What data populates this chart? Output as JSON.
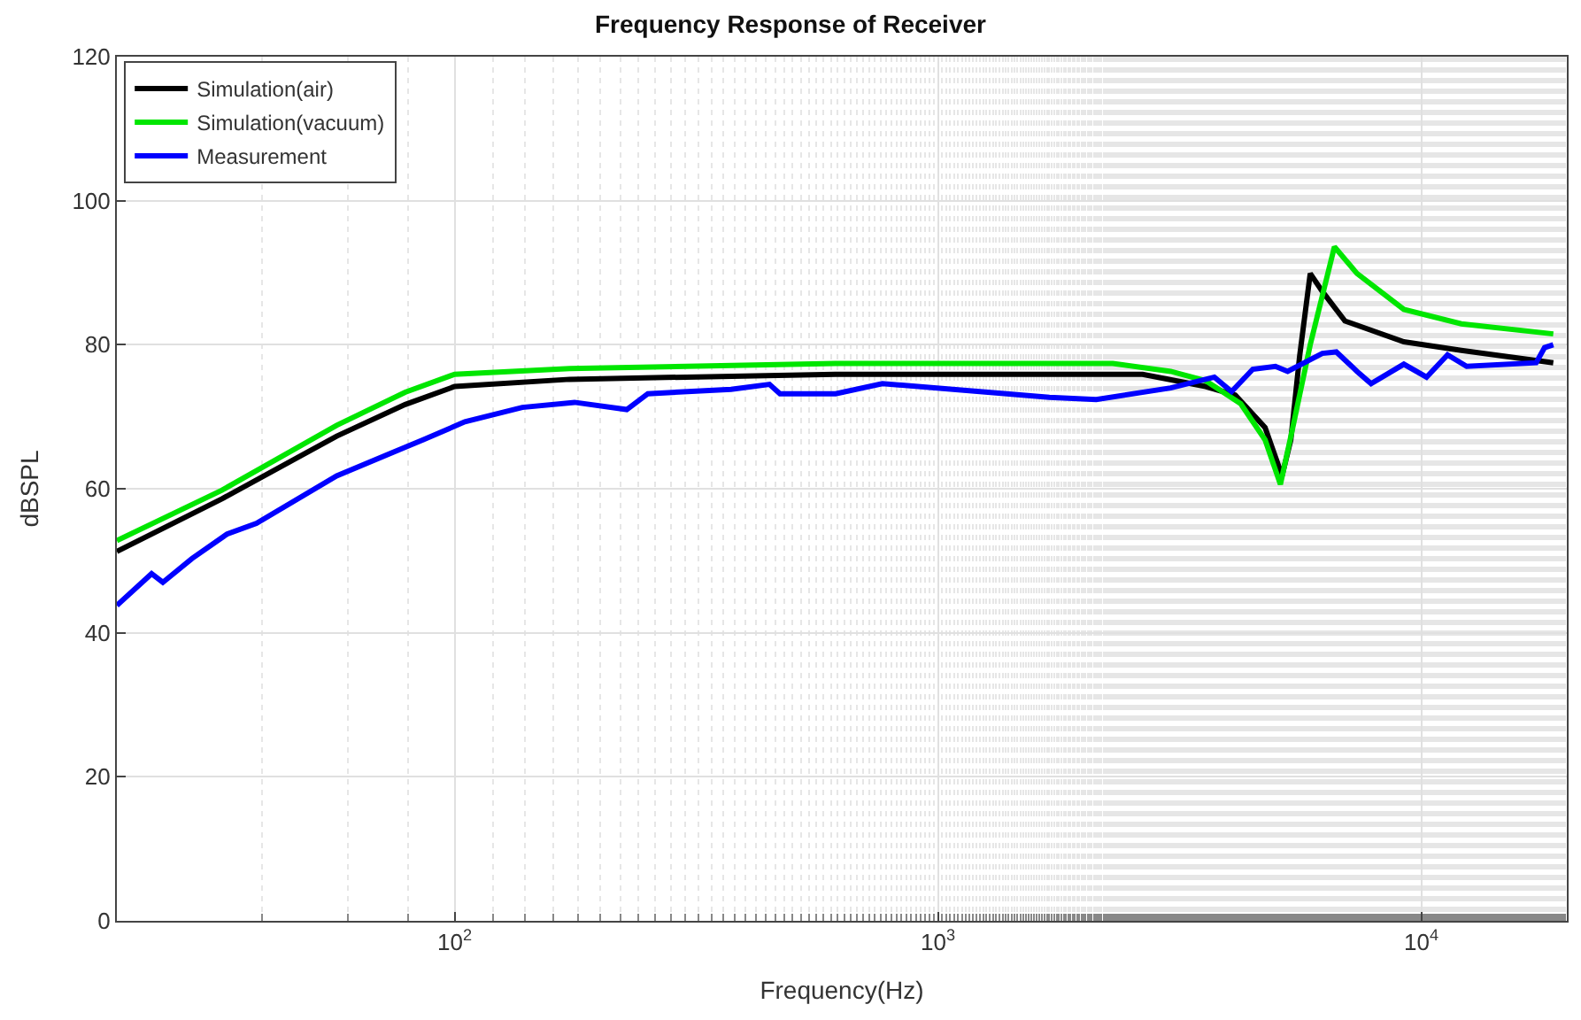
{
  "chart_data": {
    "type": "line",
    "title": "Frequency Response of Receiver",
    "xlabel": "Frequency(Hz)",
    "ylabel": "dBSPL",
    "log": "x",
    "xlim": [
      20,
      20000
    ],
    "xticks": [
      {
        "value": 100,
        "label": "10$^{2}$"
      },
      {
        "value": 1000,
        "label": "10$^{3}$"
      },
      {
        "value": 10000,
        "label": "10$^{4}$"
      }
    ],
    "ylim": [
      0,
      120
    ],
    "yticks": [
      0,
      20,
      40,
      60,
      80,
      100,
      120
    ],
    "grid": true,
    "legend": "top left",
    "marker": "none",
    "line_style": "solid",
    "series": [
      {
        "name": "Simulation(air)",
        "color": "#000000",
        "x": [
          20,
          33,
          57,
          79,
          100,
          173,
          614,
          2650,
          3580,
          4120,
          4750,
          5150,
          5370,
          5600,
          5890,
          6240,
          6950,
          9200,
          12100,
          18750
        ],
        "values": [
          51.3,
          58.6,
          67.3,
          71.7,
          74.2,
          75.2,
          75.9,
          75.9,
          74.2,
          73.0,
          68.5,
          61.8,
          66.8,
          78.4,
          89.9,
          87.4,
          83.3,
          80.4,
          79.2,
          77.5
        ]
      },
      {
        "name": "Simulation(vacuum)",
        "color": "#00e600",
        "x": [
          20,
          33,
          57,
          79,
          100,
          173,
          614,
          2300,
          3030,
          3580,
          4230,
          4750,
          5110,
          5420,
          5890,
          6610,
          7360,
          9200,
          12100,
          18750
        ],
        "values": [
          52.8,
          59.8,
          68.8,
          73.4,
          75.9,
          76.7,
          77.4,
          77.4,
          76.3,
          75.0,
          71.8,
          66.8,
          60.6,
          68.5,
          80.0,
          93.6,
          89.9,
          84.9,
          82.9,
          81.5
        ]
      },
      {
        "name": "Measurement",
        "color": "#0000ff",
        "x": [
          20,
          23.6,
          24.9,
          28.6,
          33.8,
          38.9,
          57,
          86,
          105,
          138,
          177,
          227,
          251,
          373,
          448,
          471,
          614,
          767,
          1700,
          2125,
          3030,
          3730,
          4050,
          4480,
          4990,
          5290,
          6240,
          6670,
          7360,
          7870,
          9200,
          10250,
          11330,
          12410,
          17280,
          17990,
          18750
        ],
        "values": [
          43.8,
          48.2,
          47.0,
          50.3,
          53.7,
          55.2,
          61.8,
          66.8,
          69.3,
          71.3,
          72.0,
          71.0,
          73.2,
          73.8,
          74.5,
          73.2,
          73.2,
          74.6,
          72.7,
          72.4,
          74.0,
          75.5,
          73.5,
          76.6,
          77.0,
          76.3,
          78.8,
          79.0,
          76.3,
          74.6,
          77.3,
          75.5,
          78.6,
          77.0,
          77.5,
          79.6,
          80.0
        ]
      }
    ]
  }
}
